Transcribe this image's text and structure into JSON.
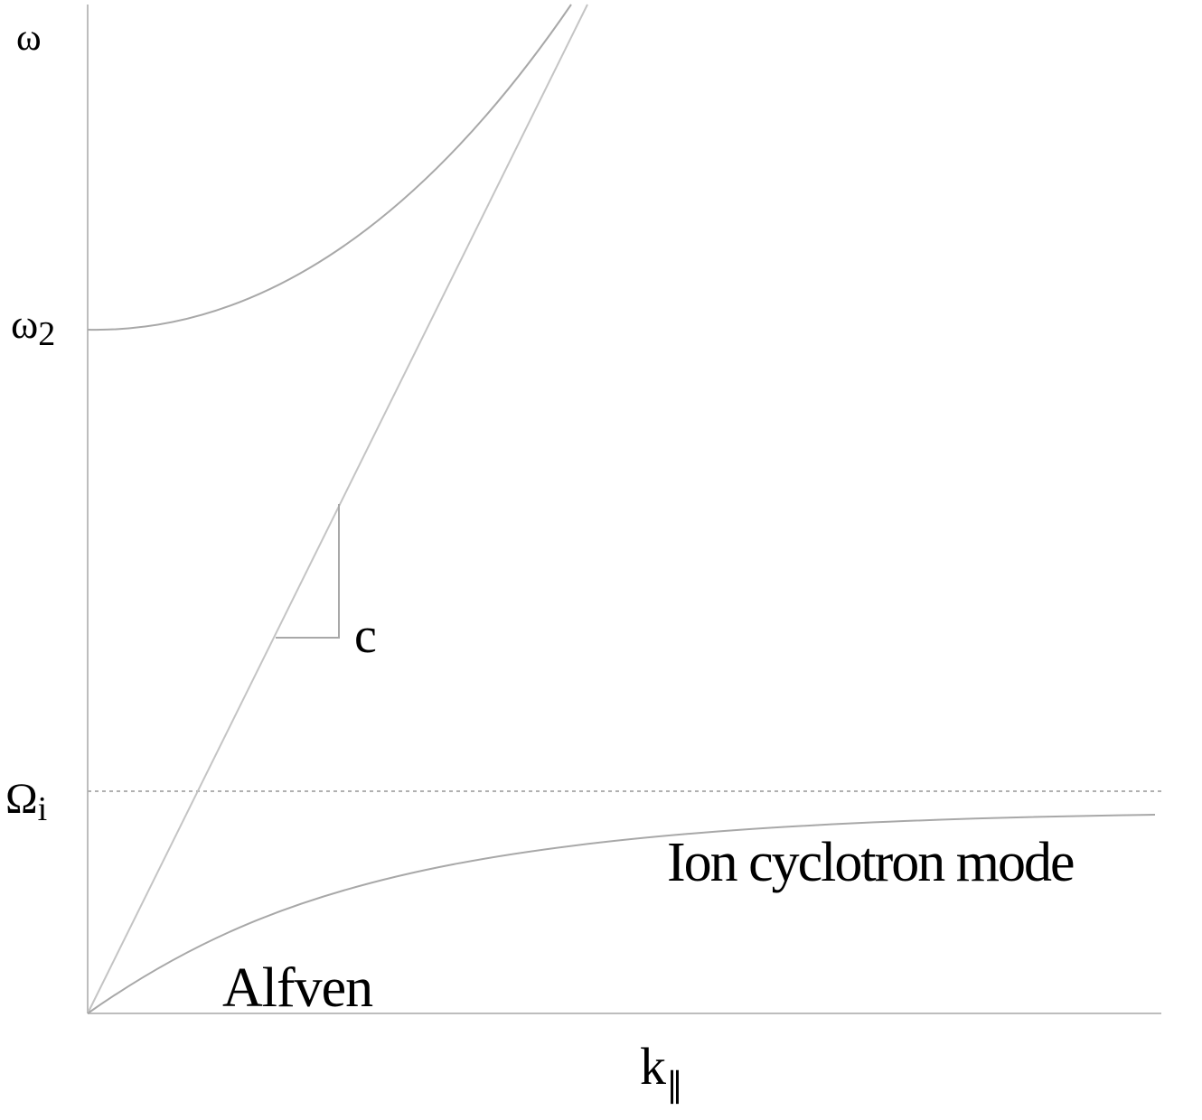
{
  "y_axis_label": "ω",
  "x_axis_label": {
    "text": "k",
    "subscript": "∥"
  },
  "levels": [
    {
      "text": "ω",
      "subscript": "2"
    },
    {
      "text": "Ω",
      "subscript": "i"
    }
  ],
  "slope_label": "c",
  "curve_labels": [
    "Ion cyclotron mode",
    "Alfven"
  ]
}
